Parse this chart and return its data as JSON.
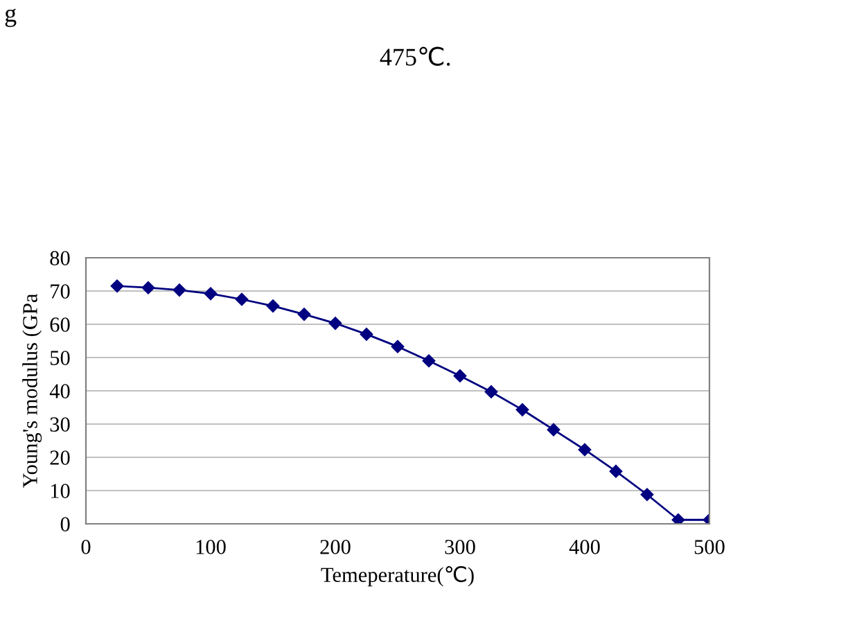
{
  "chart_data": {
    "type": "line",
    "xlabel": "Temeperature(℃)",
    "ylabel": "Young's modulus (GPa",
    "annotations": [
      "g",
      "475℃."
    ],
    "x": [
      25,
      50,
      75,
      100,
      125,
      150,
      175,
      200,
      225,
      250,
      275,
      300,
      325,
      350,
      375,
      400,
      425,
      450,
      475,
      500
    ],
    "series": [
      {
        "color": "#000080",
        "values": [
          71.5,
          71,
          70.3,
          69.2,
          67.5,
          65.5,
          63,
          60.3,
          57,
          53.3,
          49,
          44.5,
          39.7,
          34.3,
          28.3,
          22.3,
          15.8,
          8.8,
          1.2,
          1.2
        ]
      }
    ],
    "xlim": [
      0,
      500
    ],
    "xticks": [
      0,
      100,
      200,
      300,
      400,
      500
    ],
    "ylim": [
      0,
      80
    ],
    "yticks": [
      0,
      10,
      20,
      30,
      40,
      50,
      60,
      70,
      80
    ],
    "grid": "y",
    "marker": "diamond",
    "line_style": "solid"
  }
}
